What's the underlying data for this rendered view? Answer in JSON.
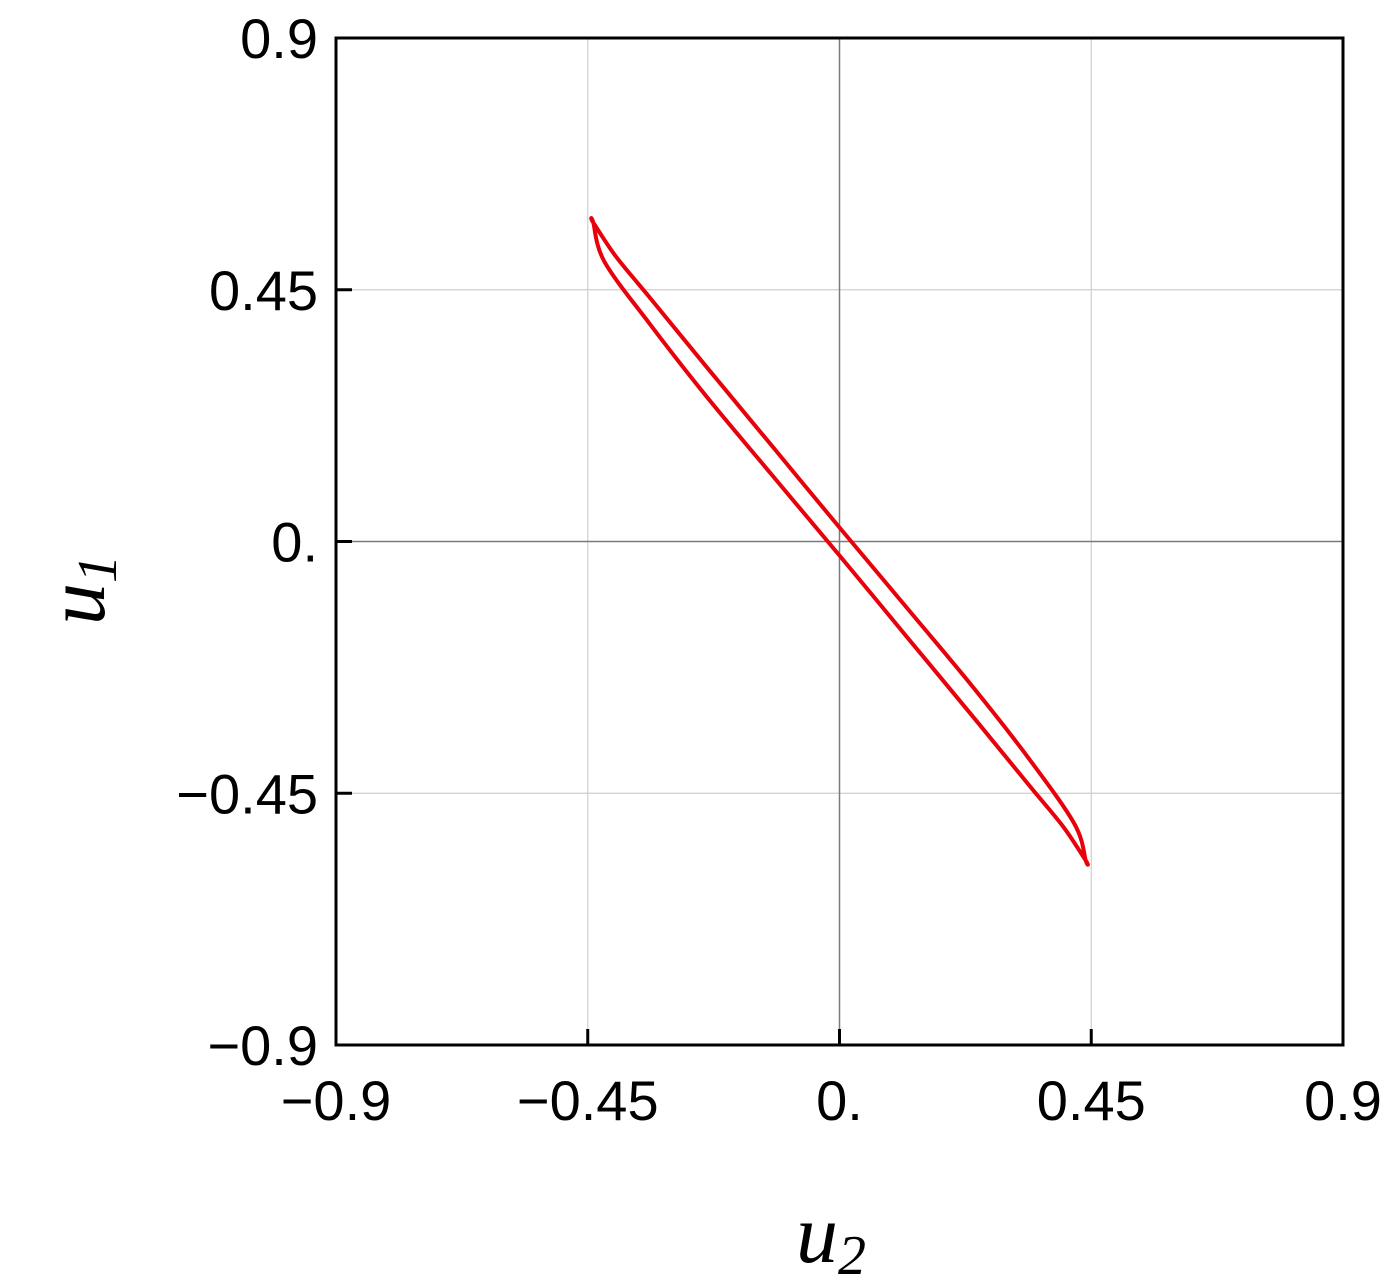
{
  "chart_data": {
    "type": "line",
    "title": "",
    "xlabel": "u",
    "xlabel_subscript": "2",
    "ylabel": "u",
    "ylabel_subscript": "1",
    "xlim": [
      -0.9,
      0.9
    ],
    "ylim": [
      -0.9,
      0.9
    ],
    "grid": true,
    "xticks": [
      {
        "value": -0.9,
        "label": "−0.9"
      },
      {
        "value": -0.45,
        "label": "−0.45"
      },
      {
        "value": 0,
        "label": "0."
      },
      {
        "value": 0.45,
        "label": "0.45"
      },
      {
        "value": 0.9,
        "label": "0.9"
      }
    ],
    "yticks": [
      {
        "value": -0.9,
        "label": "−0.9"
      },
      {
        "value": -0.45,
        "label": "−0.45"
      },
      {
        "value": 0,
        "label": "0."
      },
      {
        "value": 0.45,
        "label": "0.45"
      },
      {
        "value": 0.9,
        "label": "0.9"
      }
    ],
    "series": [
      {
        "color": "#e8000b",
        "shape": "closed ellipse",
        "x": [
          -0.44,
          -0.42,
          -0.34,
          -0.24,
          -0.12,
          0.0,
          0.12,
          0.24,
          0.34,
          0.4,
          0.44,
          0.44,
          0.42,
          0.34,
          0.24,
          0.12,
          0.0,
          -0.12,
          -0.24,
          -0.34,
          -0.4,
          -0.44
        ],
        "y": [
          0.57,
          0.5,
          0.39,
          0.262,
          0.118,
          -0.025,
          -0.17,
          -0.315,
          -0.437,
          -0.51,
          -0.57,
          -0.57,
          -0.505,
          -0.39,
          -0.262,
          -0.118,
          0.025,
          0.17,
          0.315,
          0.437,
          0.51,
          0.57
        ]
      }
    ]
  }
}
